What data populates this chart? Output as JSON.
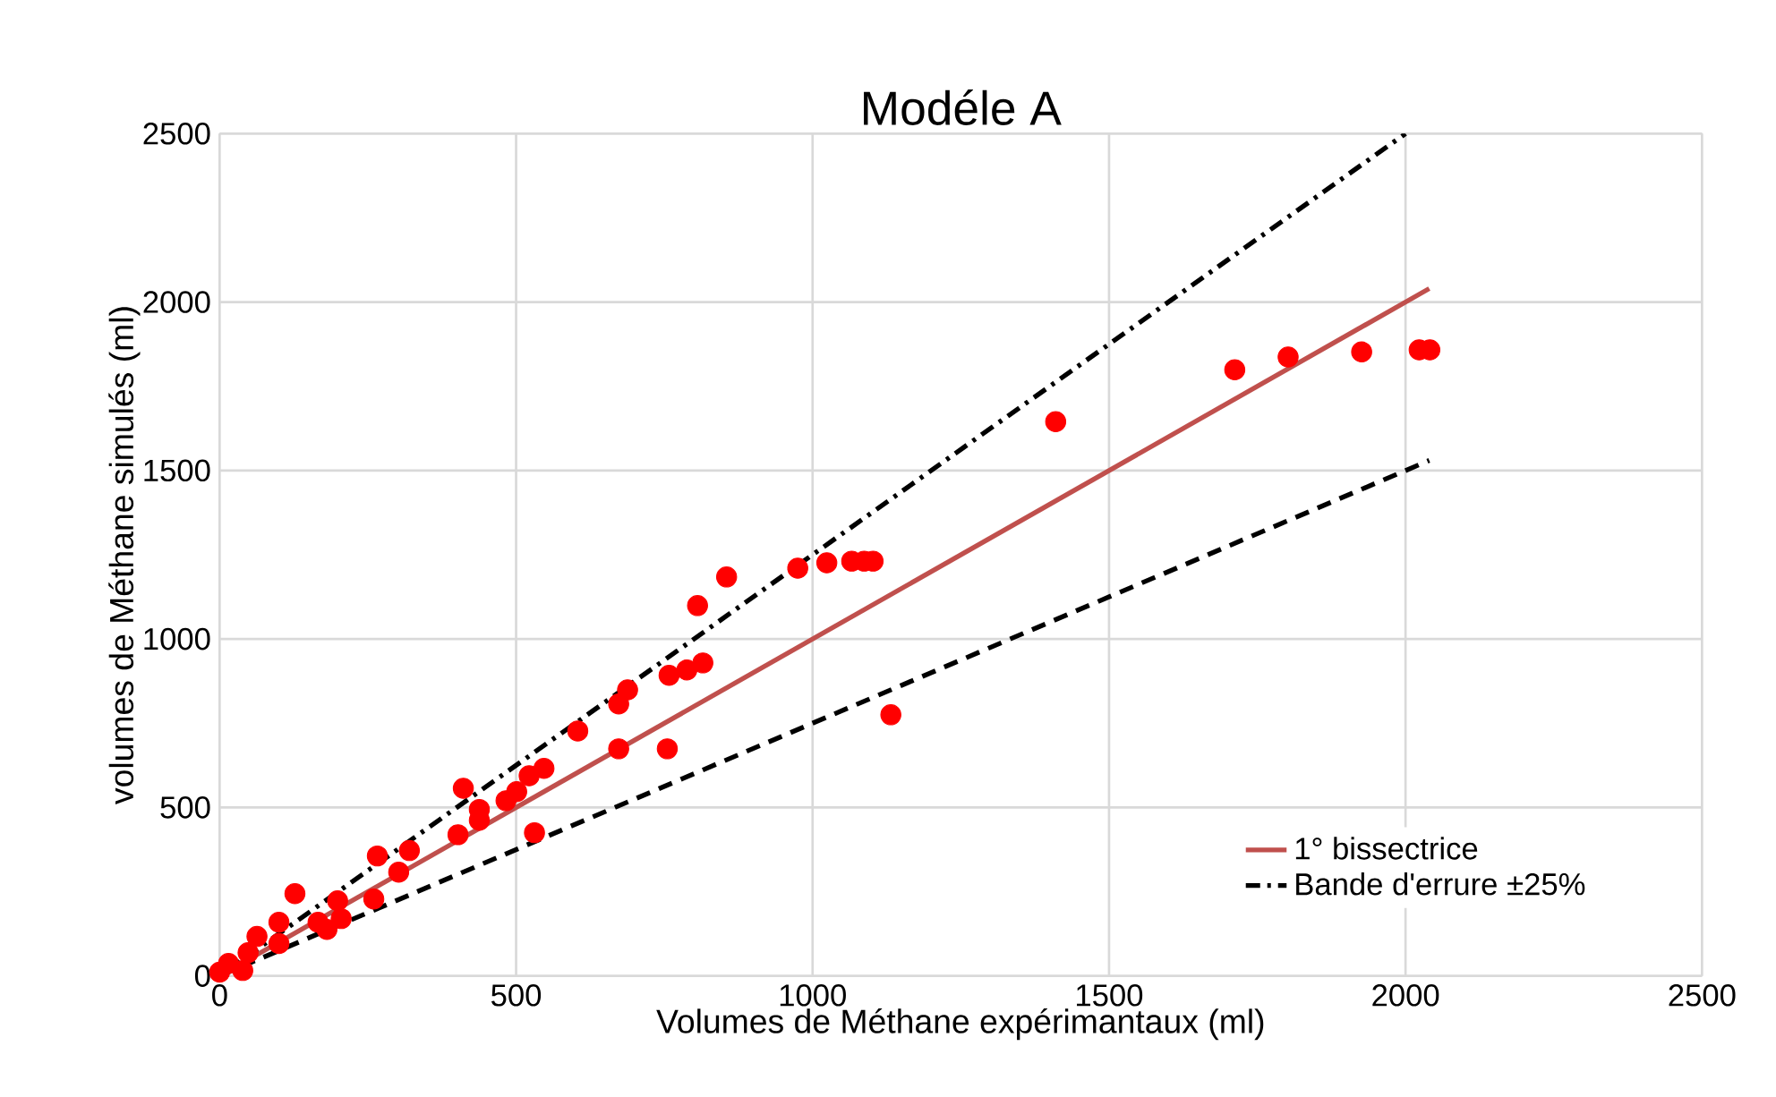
{
  "chart_data": {
    "type": "scatter",
    "title": "Modéle A",
    "xlabel": "Volumes de Méthane expérimantaux (ml)",
    "ylabel": "volumes de Méthane simulés (ml)",
    "xlim": [
      0,
      2500
    ],
    "ylim": [
      0,
      2500
    ],
    "xticks": [
      0,
      500,
      1000,
      1500,
      2000,
      2500
    ],
    "yticks": [
      0,
      500,
      1000,
      1500,
      2000,
      2500
    ],
    "grid": true,
    "legend": "bottom right",
    "series": [
      {
        "color": "#ff0000",
        "marker": "circle",
        "x": [
          0,
          15,
          39,
          48,
          63,
          100,
          100,
          127,
          166,
          181,
          199,
          205,
          260,
          266,
          302,
          320,
          402,
          411,
          438,
          438,
          483,
          501,
          522,
          531,
          547,
          604,
          673,
          673,
          688,
          755,
          758,
          788,
          806,
          815,
          855,
          975,
          1024,
          1066,
          1087,
          1102,
          1132,
          1410,
          1712,
          1802,
          1926,
          2023,
          2041
        ],
        "values": [
          11,
          37,
          16,
          69,
          117,
          96,
          159,
          244,
          159,
          138,
          223,
          170,
          228,
          356,
          308,
          372,
          419,
          557,
          494,
          462,
          520,
          547,
          594,
          425,
          616,
          727,
          674,
          807,
          849,
          674,
          892,
          908,
          1099,
          929,
          1184,
          1210,
          1226,
          1231,
          1231,
          1231,
          775,
          1645,
          1799,
          1837,
          1852,
          1858,
          1858
        ]
      },
      {
        "type": "line",
        "name": "1° bissectrice",
        "color": "#c0504d",
        "marker": "none",
        "line_style": "solid",
        "x": [
          0,
          2040
        ],
        "values": [
          0,
          2040
        ]
      },
      {
        "type": "line",
        "name": "Bande d'errure ±25%",
        "color": "#000000",
        "marker": "none",
        "line_style": "dashdot",
        "x": [
          0,
          2000
        ],
        "values": [
          0,
          2500
        ]
      },
      {
        "type": "line",
        "color": "#000000",
        "marker": "none",
        "line_style": "dashed",
        "x": [
          0,
          2040
        ],
        "values": [
          0,
          1530
        ]
      }
    ]
  }
}
